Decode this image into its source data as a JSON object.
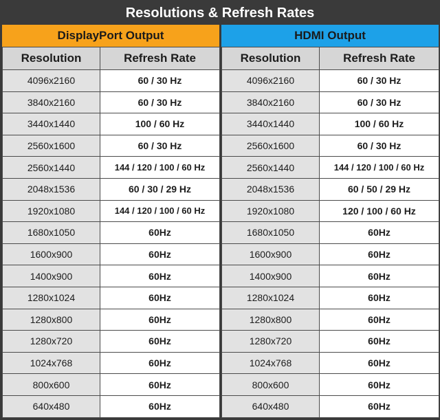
{
  "title": "Resolutions & Refresh Rates",
  "panels": {
    "dp": {
      "label": "DisplayPort Output",
      "accent": "#f7a21b",
      "col_resolution": "Resolution",
      "col_rate": "Refresh Rate",
      "rows": [
        {
          "res": "4096x2160",
          "rate": "60 / 30 Hz"
        },
        {
          "res": "3840x2160",
          "rate": "60 / 30 Hz"
        },
        {
          "res": "3440x1440",
          "rate": "100 / 60 Hz"
        },
        {
          "res": "2560x1600",
          "rate": "60 / 30 Hz"
        },
        {
          "res": "2560x1440",
          "rate": "144 / 120 / 100 / 60 Hz"
        },
        {
          "res": "2048x1536",
          "rate": "60 / 30 / 29 Hz"
        },
        {
          "res": "1920x1080",
          "rate": "144 / 120 / 100 / 60 Hz"
        },
        {
          "res": "1680x1050",
          "rate": "60Hz"
        },
        {
          "res": "1600x900",
          "rate": "60Hz"
        },
        {
          "res": "1400x900",
          "rate": "60Hz"
        },
        {
          "res": "1280x1024",
          "rate": "60Hz"
        },
        {
          "res": "1280x800",
          "rate": "60Hz"
        },
        {
          "res": "1280x720",
          "rate": "60Hz"
        },
        {
          "res": "1024x768",
          "rate": "60Hz"
        },
        {
          "res": "800x600",
          "rate": "60Hz"
        },
        {
          "res": "640x480",
          "rate": "60Hz"
        }
      ]
    },
    "hdmi": {
      "label": "HDMI Output",
      "accent": "#1da1e8",
      "col_resolution": "Resolution",
      "col_rate": "Refresh Rate",
      "rows": [
        {
          "res": "4096x2160",
          "rate": "60 / 30 Hz"
        },
        {
          "res": "3840x2160",
          "rate": "60 / 30 Hz"
        },
        {
          "res": "3440x1440",
          "rate": "100 / 60 Hz"
        },
        {
          "res": "2560x1600",
          "rate": "60 / 30 Hz"
        },
        {
          "res": "2560x1440",
          "rate": "144 / 120 / 100 /  60 Hz"
        },
        {
          "res": "2048x1536",
          "rate": "60 / 50 / 29 Hz"
        },
        {
          "res": "1920x1080",
          "rate": "120 / 100 / 60 Hz"
        },
        {
          "res": "1680x1050",
          "rate": "60Hz"
        },
        {
          "res": "1600x900",
          "rate": "60Hz"
        },
        {
          "res": "1400x900",
          "rate": "60Hz"
        },
        {
          "res": "1280x1024",
          "rate": "60Hz"
        },
        {
          "res": "1280x800",
          "rate": "60Hz"
        },
        {
          "res": "1280x720",
          "rate": "60Hz"
        },
        {
          "res": "1024x768",
          "rate": "60Hz"
        },
        {
          "res": "800x600",
          "rate": "60Hz"
        },
        {
          "res": "640x480",
          "rate": "60Hz"
        }
      ]
    }
  }
}
